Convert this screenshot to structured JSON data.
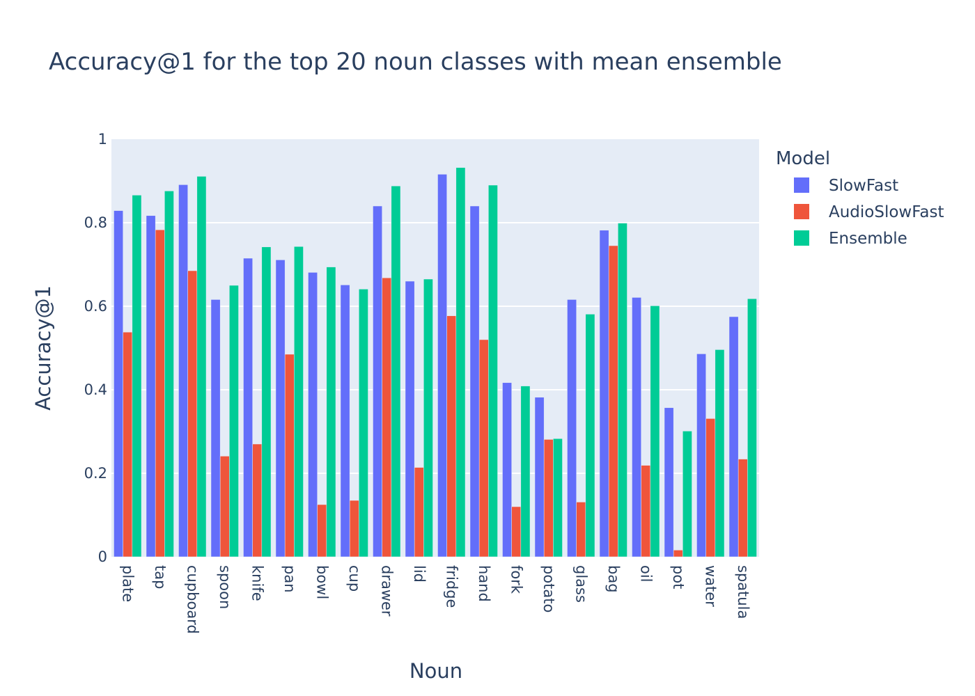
{
  "chart_data": {
    "type": "bar",
    "title": "Accuracy@1 for the top 20 noun classes with mean ensemble",
    "xlabel": "Noun",
    "ylabel": "Accuracy@1",
    "ylim": [
      0,
      1
    ],
    "yticks": [
      "0",
      "0.2",
      "0.4",
      "0.6",
      "0.8",
      "1"
    ],
    "grid": true,
    "legend_title": "Model",
    "legend_position": "top-right outside plot",
    "categories": [
      "plate",
      "tap",
      "cupboard",
      "spoon",
      "knife",
      "pan",
      "bowl",
      "cup",
      "drawer",
      "lid",
      "fridge",
      "hand",
      "fork",
      "potato",
      "glass",
      "bag",
      "oil",
      "pot",
      "water",
      "spatula"
    ],
    "series": [
      {
        "name": "SlowFast",
        "color": "#636efa",
        "values": [
          0.829,
          0.817,
          0.891,
          0.616,
          0.715,
          0.711,
          0.681,
          0.651,
          0.84,
          0.66,
          0.916,
          0.84,
          0.417,
          0.382,
          0.616,
          0.782,
          0.621,
          0.357,
          0.486,
          0.575
        ]
      },
      {
        "name": "AudioSlowFast",
        "color": "#ef553b",
        "values": [
          0.538,
          0.783,
          0.685,
          0.241,
          0.27,
          0.485,
          0.125,
          0.135,
          0.668,
          0.214,
          0.577,
          0.52,
          0.12,
          0.281,
          0.131,
          0.745,
          0.219,
          0.016,
          0.331,
          0.234
        ]
      },
      {
        "name": "Ensemble",
        "color": "#00cc96",
        "values": [
          0.866,
          0.876,
          0.911,
          0.65,
          0.742,
          0.743,
          0.694,
          0.641,
          0.888,
          0.665,
          0.932,
          0.89,
          0.409,
          0.283,
          0.581,
          0.799,
          0.601,
          0.301,
          0.496,
          0.618
        ]
      }
    ]
  }
}
